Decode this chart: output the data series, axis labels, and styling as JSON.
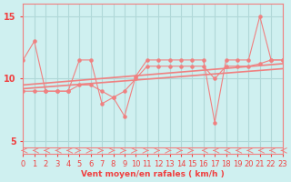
{
  "xlabel": "Vent moyen/en rafales ( km/h )",
  "ylabel": "",
  "bg_color": "#cff0f0",
  "line_color": "#f08080",
  "arrow_color": "#f08080",
  "grid_color": "#b0d8d8",
  "axis_color": "#f08080",
  "text_color": "#f04040",
  "xlim": [
    0,
    23
  ],
  "ylim": [
    4,
    16
  ],
  "yticks": [
    5,
    10,
    15
  ],
  "xticks": [
    0,
    1,
    2,
    3,
    4,
    5,
    6,
    7,
    8,
    9,
    10,
    11,
    12,
    13,
    14,
    15,
    16,
    17,
    18,
    19,
    20,
    21,
    22,
    23
  ],
  "scatter_x": [
    0,
    1,
    2,
    3,
    4,
    5,
    6,
    7,
    8,
    9,
    10,
    11,
    12,
    13,
    14,
    15,
    16,
    17,
    18,
    19,
    20,
    21,
    22,
    23
  ],
  "line1_y": [
    11.5,
    13.0,
    9.0,
    9.0,
    9.0,
    11.5,
    11.5,
    8.0,
    8.5,
    7.0,
    10.2,
    11.5,
    11.5,
    11.5,
    11.5,
    11.5,
    11.5,
    6.5,
    11.5,
    11.5,
    11.5,
    15.0,
    11.5,
    11.5
  ],
  "line2_y": [
    9.0,
    9.0,
    9.0,
    9.0,
    9.0,
    9.5,
    9.5,
    9.0,
    8.5,
    9.0,
    10.0,
    11.0,
    11.0,
    11.0,
    11.0,
    11.0,
    11.0,
    10.0,
    11.0,
    11.0,
    11.0,
    11.2,
    11.5,
    11.5
  ],
  "trend1_x": [
    0,
    23
  ],
  "trend1_y": [
    9.2,
    10.8
  ],
  "trend2_x": [
    0,
    23
  ],
  "trend2_y": [
    9.5,
    11.2
  ],
  "arrows_x": [
    0,
    1,
    2,
    3,
    4,
    5,
    6,
    7,
    8,
    9,
    10,
    11,
    12,
    13,
    14,
    15,
    16,
    17,
    18,
    19,
    20,
    21,
    22,
    23
  ],
  "arrows_dir": [
    -1,
    -1,
    -1,
    -1,
    -1,
    1,
    1,
    1,
    1,
    1,
    1,
    1,
    1,
    1,
    1,
    1,
    -1,
    -1,
    -1,
    -1,
    -1,
    -1,
    -1,
    -1
  ]
}
